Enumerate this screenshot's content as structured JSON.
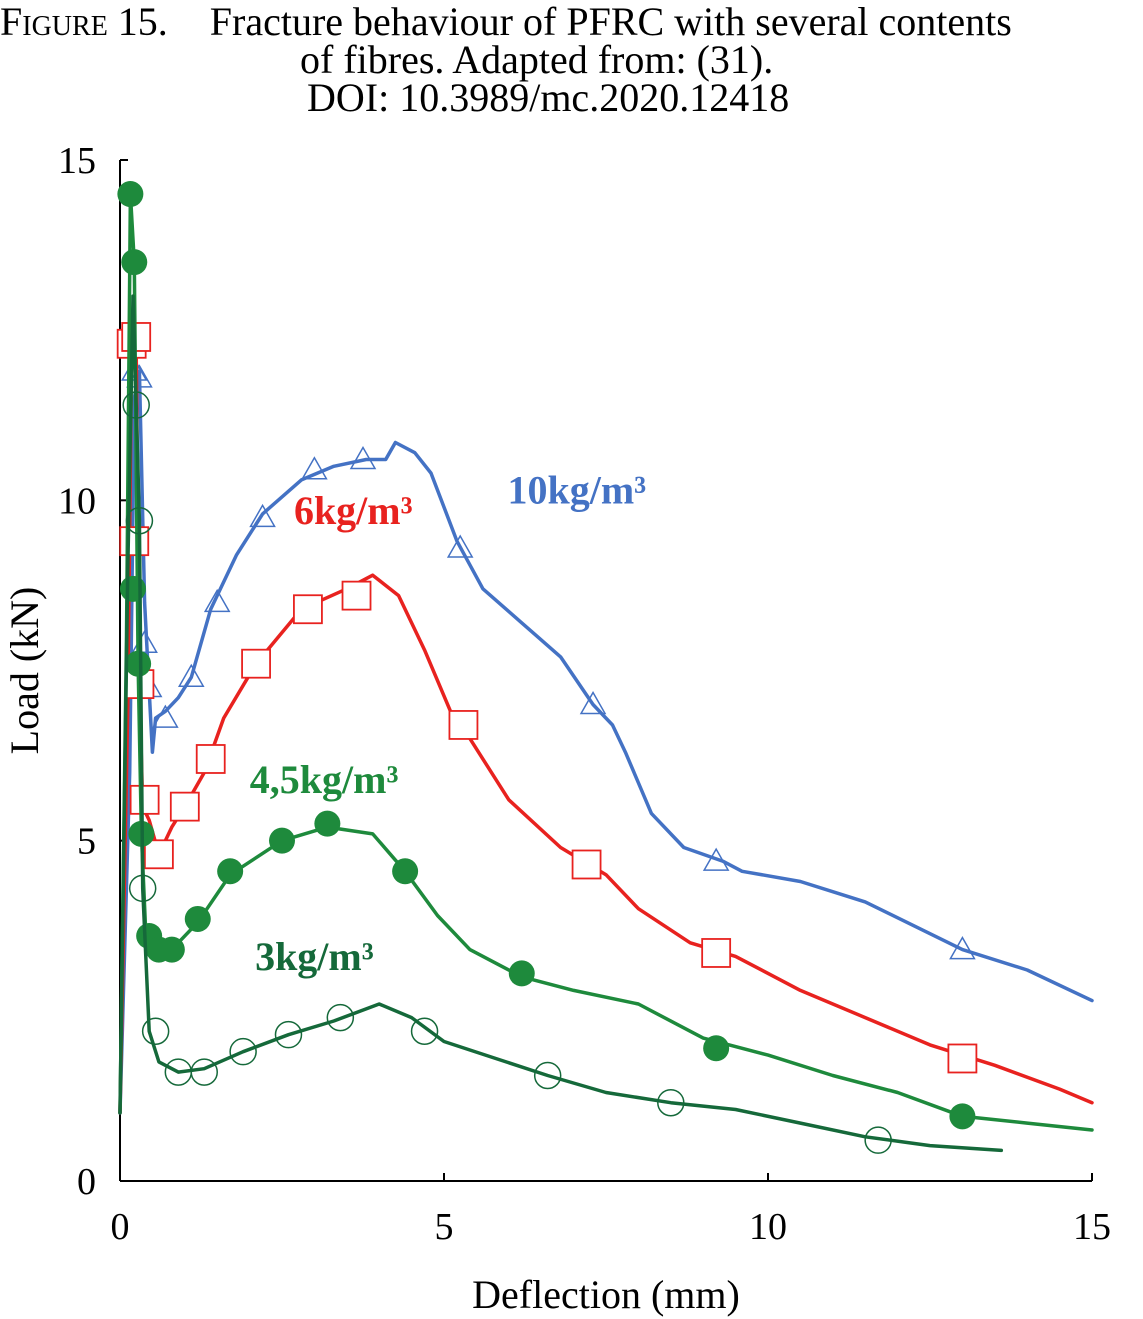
{
  "caption": {
    "figure_label": "Figure 15.",
    "line1": "Fracture behaviour of PFRC with several contents",
    "line2": "of fibres. Adapted from: (31).",
    "line3": "DOI: 10.3989/mc.2020.12418"
  },
  "chart_data": {
    "type": "line",
    "xlabel": "Deflection (mm)",
    "ylabel": "Load (kN)",
    "xlim": [
      0,
      15
    ],
    "ylim": [
      0,
      15
    ],
    "x_ticks": [
      "0",
      "5",
      "10",
      "15"
    ],
    "y_ticks": [
      "0",
      "5",
      "10",
      "15"
    ],
    "grid": false,
    "series": [
      {
        "name": "10kg/m³",
        "color": "#4472c4",
        "marker": "open-triangle",
        "points": [
          [
            0,
            1
          ],
          [
            0.15,
            6
          ],
          [
            0.22,
            11.5
          ],
          [
            0.3,
            11.9
          ],
          [
            0.38,
            8.5
          ],
          [
            0.45,
            7.2
          ],
          [
            0.5,
            6.3
          ],
          [
            0.55,
            6.8
          ],
          [
            0.7,
            6.9
          ],
          [
            0.9,
            7.1
          ],
          [
            1.1,
            7.4
          ],
          [
            1.4,
            8.4
          ],
          [
            1.8,
            9.2
          ],
          [
            2.2,
            9.8
          ],
          [
            2.8,
            10.3
          ],
          [
            3.3,
            10.5
          ],
          [
            3.8,
            10.6
          ],
          [
            4.1,
            10.6
          ],
          [
            4.25,
            10.85
          ],
          [
            4.55,
            10.7
          ],
          [
            4.8,
            10.4
          ],
          [
            5.2,
            9.4
          ],
          [
            5.6,
            8.7
          ],
          [
            6.2,
            8.2
          ],
          [
            6.8,
            7.7
          ],
          [
            7.3,
            7.0
          ],
          [
            7.6,
            6.7
          ],
          [
            7.8,
            6.3
          ],
          [
            8.2,
            5.4
          ],
          [
            8.7,
            4.9
          ],
          [
            9.3,
            4.7
          ],
          [
            9.6,
            4.55
          ],
          [
            10.5,
            4.4
          ],
          [
            11.5,
            4.1
          ],
          [
            13.0,
            3.4
          ],
          [
            14.0,
            3.1
          ],
          [
            15.0,
            2.65
          ]
        ],
        "marker_points": [
          [
            0.22,
            11.9
          ],
          [
            0.3,
            11.8
          ],
          [
            0.38,
            7.9
          ],
          [
            0.45,
            7.25
          ],
          [
            0.7,
            6.8
          ],
          [
            1.1,
            7.4
          ],
          [
            1.5,
            8.5
          ],
          [
            2.2,
            9.75
          ],
          [
            3.0,
            10.45
          ],
          [
            3.75,
            10.6
          ],
          [
            5.25,
            9.3
          ],
          [
            7.3,
            7.0
          ],
          [
            9.2,
            4.7
          ],
          [
            13.0,
            3.4
          ]
        ],
        "label_pos": {
          "x": 7.05,
          "y": 9.95
        }
      },
      {
        "name": "6kg/m³",
        "color": "#e8221f",
        "marker": "open-square",
        "points": [
          [
            0,
            1
          ],
          [
            0.12,
            7
          ],
          [
            0.18,
            12.4
          ],
          [
            0.25,
            12.2
          ],
          [
            0.3,
            7.3
          ],
          [
            0.35,
            5.5
          ],
          [
            0.45,
            5.3
          ],
          [
            0.6,
            4.8
          ],
          [
            0.8,
            5.2
          ],
          [
            1.0,
            5.5
          ],
          [
            1.3,
            6.0
          ],
          [
            1.6,
            6.8
          ],
          [
            2.1,
            7.6
          ],
          [
            2.8,
            8.4
          ],
          [
            3.5,
            8.7
          ],
          [
            3.9,
            8.9
          ],
          [
            4.3,
            8.6
          ],
          [
            4.7,
            7.8
          ],
          [
            5.1,
            6.9
          ],
          [
            5.4,
            6.5
          ],
          [
            6.0,
            5.6
          ],
          [
            6.8,
            4.9
          ],
          [
            7.5,
            4.5
          ],
          [
            8.0,
            4.0
          ],
          [
            8.8,
            3.5
          ],
          [
            9.5,
            3.3
          ],
          [
            10.5,
            2.8
          ],
          [
            11.5,
            2.4
          ],
          [
            12.5,
            2.0
          ],
          [
            13.5,
            1.7
          ],
          [
            14.5,
            1.35
          ],
          [
            15.0,
            1.15
          ]
        ],
        "marker_points": [
          [
            0.18,
            12.3
          ],
          [
            0.25,
            12.4
          ],
          [
            0.22,
            9.4
          ],
          [
            0.3,
            7.3
          ],
          [
            0.38,
            5.6
          ],
          [
            0.6,
            4.8
          ],
          [
            1.0,
            5.5
          ],
          [
            1.4,
            6.2
          ],
          [
            2.1,
            7.6
          ],
          [
            2.9,
            8.4
          ],
          [
            3.65,
            8.6
          ],
          [
            5.3,
            6.7
          ],
          [
            7.2,
            4.65
          ],
          [
            9.2,
            3.35
          ],
          [
            13.0,
            1.8
          ]
        ],
        "label_pos": {
          "x": 3.6,
          "y": 9.65
        }
      },
      {
        "name": "4,5kg/m³",
        "color": "#1e8a3c",
        "marker": "filled-circle",
        "points": [
          [
            0,
            1
          ],
          [
            0.1,
            8
          ],
          [
            0.16,
            14.5
          ],
          [
            0.22,
            13.5
          ],
          [
            0.28,
            7.6
          ],
          [
            0.33,
            5.1
          ],
          [
            0.4,
            3.6
          ],
          [
            0.55,
            3.4
          ],
          [
            0.8,
            3.4
          ],
          [
            1.2,
            3.8
          ],
          [
            1.7,
            4.5
          ],
          [
            2.5,
            5.0
          ],
          [
            3.2,
            5.2
          ],
          [
            3.9,
            5.1
          ],
          [
            4.4,
            4.55
          ],
          [
            4.9,
            3.9
          ],
          [
            5.4,
            3.4
          ],
          [
            6.2,
            3.0
          ],
          [
            7.0,
            2.8
          ],
          [
            8.0,
            2.6
          ],
          [
            9.0,
            2.1
          ],
          [
            10.0,
            1.85
          ],
          [
            11.0,
            1.55
          ],
          [
            12.0,
            1.3
          ],
          [
            13.0,
            0.95
          ],
          [
            14.0,
            0.85
          ],
          [
            15.0,
            0.75
          ]
        ],
        "marker_points": [
          [
            0.16,
            14.5
          ],
          [
            0.22,
            13.5
          ],
          [
            0.2,
            8.7
          ],
          [
            0.28,
            7.6
          ],
          [
            0.33,
            5.1
          ],
          [
            0.45,
            3.6
          ],
          [
            0.6,
            3.4
          ],
          [
            0.8,
            3.4
          ],
          [
            1.2,
            3.85
          ],
          [
            1.7,
            4.55
          ],
          [
            2.5,
            5.0
          ],
          [
            3.2,
            5.25
          ],
          [
            4.4,
            4.55
          ],
          [
            6.2,
            3.05
          ],
          [
            9.2,
            1.95
          ],
          [
            13.0,
            0.95
          ]
        ],
        "label_pos": {
          "x": 3.15,
          "y": 5.7
        }
      },
      {
        "name": "3kg/m³",
        "color": "#15693a",
        "marker": "open-circle",
        "points": [
          [
            0,
            1
          ],
          [
            0.12,
            9
          ],
          [
            0.2,
            13
          ],
          [
            0.25,
            11.4
          ],
          [
            0.3,
            9.7
          ],
          [
            0.35,
            4.3
          ],
          [
            0.45,
            2.2
          ],
          [
            0.6,
            1.75
          ],
          [
            0.9,
            1.6
          ],
          [
            1.3,
            1.65
          ],
          [
            1.9,
            1.9
          ],
          [
            2.6,
            2.15
          ],
          [
            3.3,
            2.35
          ],
          [
            4.0,
            2.6
          ],
          [
            4.5,
            2.4
          ],
          [
            5.0,
            2.05
          ],
          [
            5.8,
            1.8
          ],
          [
            6.6,
            1.55
          ],
          [
            7.5,
            1.3
          ],
          [
            8.5,
            1.15
          ],
          [
            9.5,
            1.05
          ],
          [
            10.5,
            0.85
          ],
          [
            11.5,
            0.65
          ],
          [
            12.5,
            0.52
          ],
          [
            13.6,
            0.45
          ]
        ],
        "marker_points": [
          [
            0.25,
            11.4
          ],
          [
            0.3,
            9.7
          ],
          [
            0.35,
            4.3
          ],
          [
            0.55,
            2.2
          ],
          [
            0.9,
            1.6
          ],
          [
            1.3,
            1.6
          ],
          [
            1.9,
            1.9
          ],
          [
            2.6,
            2.15
          ],
          [
            3.4,
            2.4
          ],
          [
            4.7,
            2.2
          ],
          [
            6.6,
            1.55
          ],
          [
            8.5,
            1.15
          ],
          [
            11.7,
            0.6
          ]
        ],
        "label_pos": {
          "x": 3.0,
          "y": 3.1
        }
      }
    ]
  }
}
